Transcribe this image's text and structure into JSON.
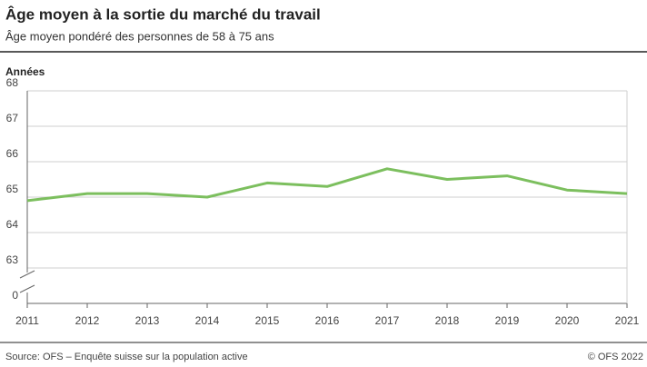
{
  "chart_data": {
    "type": "line",
    "title": "Âge moyen à la sortie du marché du travail",
    "subtitle": "Âge moyen pondéré des personnes de 58 à 75 ans",
    "y_label": "Années",
    "x": [
      2011,
      2012,
      2013,
      2014,
      2015,
      2016,
      2017,
      2018,
      2019,
      2020,
      2021
    ],
    "series": [
      {
        "name": "Âge moyen",
        "color": "#7cbf5e",
        "values": [
          64.9,
          65.1,
          65.1,
          65.0,
          65.4,
          65.3,
          65.8,
          65.5,
          65.6,
          65.2,
          65.1
        ]
      }
    ],
    "xlim": [
      2011,
      2021
    ],
    "xticks": [
      2011,
      2012,
      2013,
      2014,
      2015,
      2016,
      2017,
      2018,
      2019,
      2020,
      2021
    ],
    "ylim": [
      0,
      68
    ],
    "ybreak": [
      0,
      62
    ],
    "yticks": [
      0,
      63,
      64,
      65,
      66,
      67,
      68
    ],
    "grid": true,
    "source": "Source: OFS – Enquête suisse sur la population active",
    "credit": "© OFS 2022"
  }
}
